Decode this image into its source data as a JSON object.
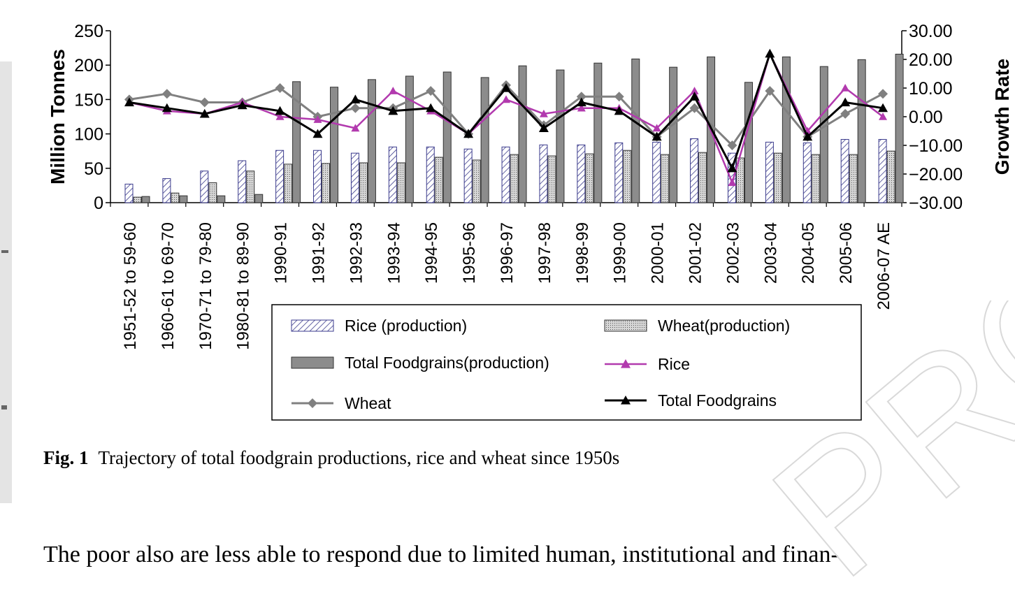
{
  "caption": {
    "label": "Fig. 1",
    "text": "Trajectory of total foodgrain productions, rice and wheat since 1950s"
  },
  "body_text": "The poor also are less able to respond due to limited human, institutional and finan-",
  "watermark": "PROOF",
  "colors": {
    "rice_line": "#b23aae",
    "wheat_line": "#808080",
    "total_line": "#000000",
    "total_bar": "#8c8c8c",
    "rice_bar_hatch": "#3a3a8c",
    "wheat_bar_fill": "#bfbfbf",
    "sidebar": "#e4e4e4"
  },
  "chart_data": {
    "type": "bar",
    "categories": [
      "1951-52 to 59-60",
      "1960-61 to 69-70",
      "1970-71 to 79-80",
      "1980-81 to 89-90",
      "1990-91",
      "1991-92",
      "1992-93",
      "1993-94",
      "1994-95",
      "1995-96",
      "1996-97",
      "1997-98",
      "1998-99",
      "1999-00",
      "2000-01",
      "2001-02",
      "2002-03",
      "2003-04",
      "2004-05",
      "2005-06",
      "2006-07 AE"
    ],
    "ylabel": "Million Tonnes",
    "y2label": "Growth Rate",
    "ylim": [
      0,
      250
    ],
    "yticks": [
      "0",
      "50",
      "100",
      "150",
      "200",
      "250"
    ],
    "y2lim": [
      -30,
      30
    ],
    "y2ticks": [
      "−30.00",
      "−20.00",
      "−10.00",
      "0.00",
      "10.00",
      "20.00",
      "30.00"
    ],
    "grid": false,
    "legend_position": "bottom-center",
    "series": [
      {
        "name": "Rice (production)",
        "kind": "bar",
        "axis": "left",
        "values": [
          27,
          35,
          46,
          61,
          76,
          76,
          72,
          81,
          81,
          78,
          81,
          84,
          84,
          87,
          88,
          93,
          72,
          88,
          87,
          92,
          92
        ]
      },
      {
        "name": "Wheat(production)",
        "kind": "bar",
        "axis": "left",
        "values": [
          8,
          14,
          29,
          46,
          56,
          57,
          58,
          58,
          66,
          62,
          70,
          68,
          71,
          76,
          70,
          73,
          65,
          72,
          70,
          70,
          75
        ]
      },
      {
        "name": "Total Foodgrains(production)",
        "kind": "bar",
        "axis": "left",
        "values": [
          9,
          10,
          10,
          12,
          176,
          168,
          179,
          184,
          190,
          182,
          199,
          193,
          203,
          209,
          197,
          212,
          175,
          212,
          198,
          208,
          216
        ]
      },
      {
        "name": "Rice",
        "kind": "line",
        "axis": "right",
        "values": [
          5,
          2,
          1,
          5,
          0,
          -1,
          -4,
          9,
          2,
          -6,
          6,
          1,
          3,
          3,
          -4,
          9,
          -23,
          22,
          -5,
          10,
          0
        ]
      },
      {
        "name": "Wheat",
        "kind": "line",
        "axis": "right",
        "values": [
          6,
          8,
          5,
          5,
          10,
          0,
          3,
          3,
          9,
          -6,
          11,
          -3,
          7,
          7,
          -7,
          3,
          -10,
          9,
          -7,
          1,
          8
        ]
      },
      {
        "name": "Total Foodgrains",
        "kind": "line",
        "axis": "right",
        "values": [
          5,
          3,
          1,
          4,
          2,
          -6,
          6,
          2,
          3,
          -6,
          10,
          -4,
          5,
          2,
          -7,
          7,
          -18,
          22,
          -7,
          5,
          3
        ]
      }
    ]
  }
}
